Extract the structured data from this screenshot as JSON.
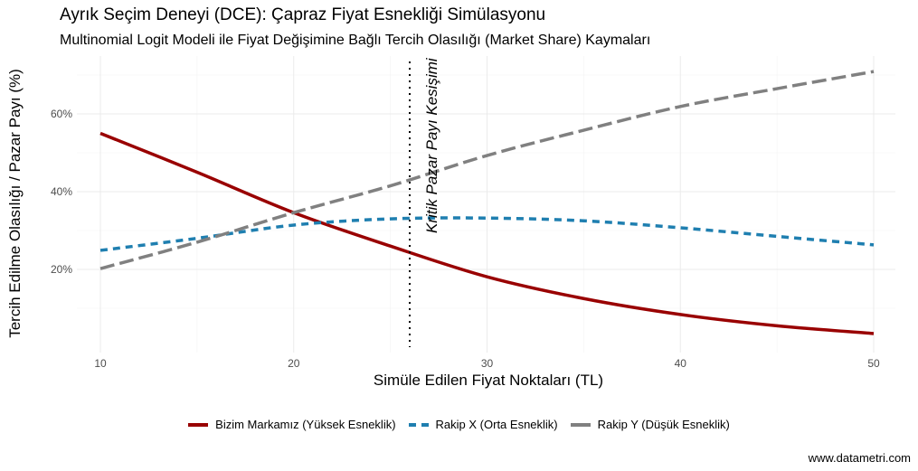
{
  "chart_data": {
    "type": "line",
    "title": "Ayrık Seçim Deneyi (DCE): Çapraz Fiyat Esnekliği Simülasyonu",
    "subtitle": "Multinomial Logit Modeli ile Fiyat Değişimine Bağlı Tercih Olasılığı (Market Share) Kaymaları",
    "xlabel": "Simüle Edilen Fiyat Noktaları (TL)",
    "ylabel": "Tercih Edilme Olasılığı / Pazar Payı (%)",
    "xlim": [
      8,
      51.5
    ],
    "ylim": [
      0,
      74
    ],
    "x_ticks": [
      10,
      20,
      30,
      40,
      50
    ],
    "y_ticks": [
      20,
      40,
      60
    ],
    "y_tick_labels": [
      "20%",
      "40%",
      "60%"
    ],
    "grid": true,
    "legend_position": "bottom",
    "x": [
      10,
      15,
      20,
      25,
      30,
      35,
      40,
      45,
      50
    ],
    "series": [
      {
        "name": "Bizim Markamız (Yüksek Esneklik)",
        "color": "#990000",
        "style": "solid",
        "values": [
          55,
          45,
          34.6,
          26,
          18.1,
          12.5,
          8.4,
          5.5,
          3.5
        ]
      },
      {
        "name": "Rakip X (Orta Esneklik)",
        "color": "#1F7FB0",
        "style": "dashed",
        "values": [
          24.9,
          28,
          31.4,
          33,
          33.2,
          32.5,
          30.7,
          28.5,
          26.3
        ]
      },
      {
        "name": "Rakip Y (Düşük Esneklik)",
        "color": "#808080",
        "style": "longdash",
        "values": [
          20.2,
          27,
          34.6,
          41.5,
          49.3,
          55.8,
          61.9,
          66.5,
          70.9
        ]
      }
    ],
    "annotations": [
      {
        "type": "vline",
        "x": 26,
        "style": "dotted",
        "label": "Kritik Pazar Payı Kesişimi"
      }
    ]
  },
  "caption": "www.datametri.com"
}
